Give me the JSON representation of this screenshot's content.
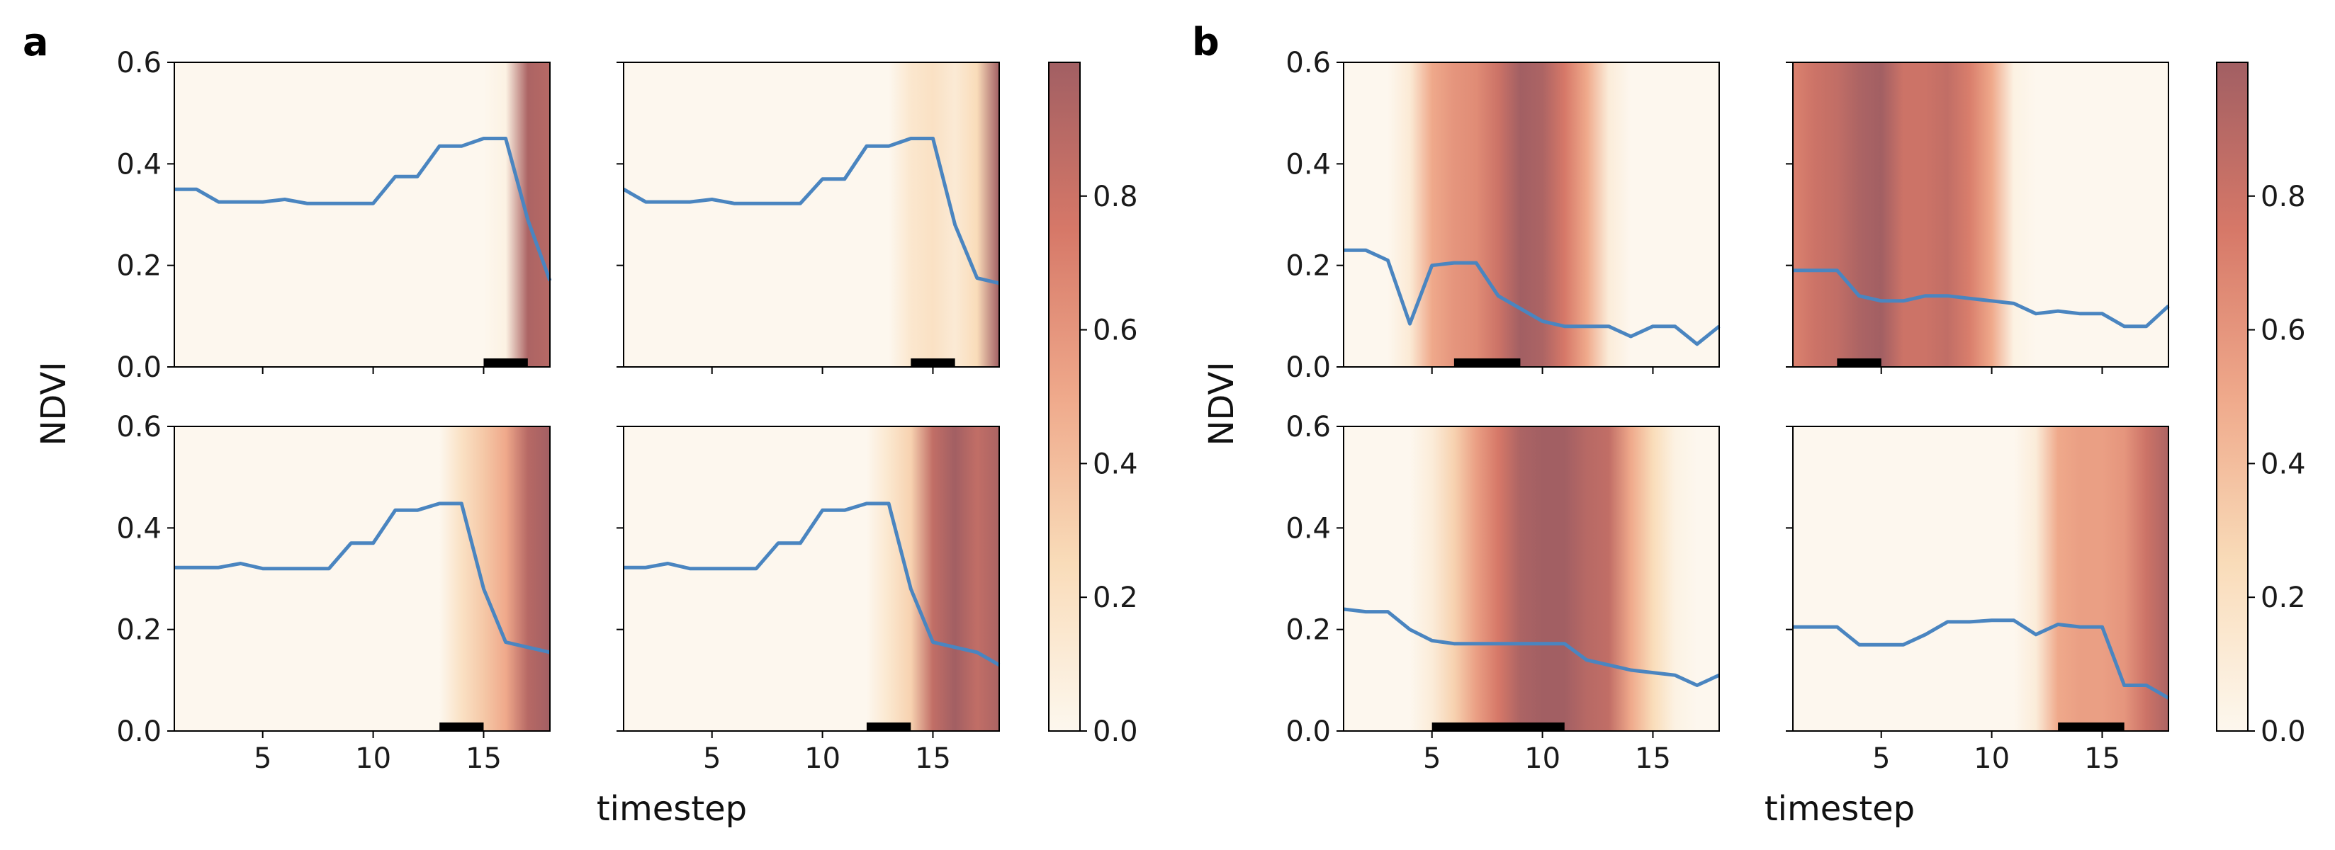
{
  "panels": [
    {
      "label": "a",
      "ylabel": "NDVI",
      "xlabel": "timestep"
    },
    {
      "label": "b",
      "ylabel": "NDVI",
      "xlabel": "timestep"
    }
  ],
  "colorbar": {
    "ticks": [
      0.0,
      0.2,
      0.4,
      0.6,
      0.8
    ],
    "tick_labels": [
      "0.0",
      "0.2",
      "0.4",
      "0.6",
      "0.8"
    ],
    "range": [
      0,
      1
    ],
    "colors": [
      "#fdf7ee",
      "#f9dcb9",
      "#efa98b",
      "#d67868",
      "#a25f63"
    ]
  },
  "line_color": "#4a85c0",
  "marker_color": "#000000",
  "chart_data": [
    {
      "type": "line",
      "panel": "a",
      "subplot": "top-left",
      "xlim": [
        1,
        18
      ],
      "ylim": [
        0,
        0.6
      ],
      "x": [
        1,
        2,
        3,
        4,
        5,
        6,
        7,
        8,
        9,
        10,
        11,
        12,
        13,
        14,
        15,
        16,
        17,
        18
      ],
      "y": [
        0.35,
        0.35,
        0.325,
        0.325,
        0.325,
        0.33,
        0.322,
        0.322,
        0.322,
        0.322,
        0.375,
        0.375,
        0.435,
        0.435,
        0.45,
        0.45,
        0.29,
        0.17
      ],
      "heat": [
        0,
        0,
        0,
        0,
        0,
        0,
        0,
        0,
        0,
        0,
        0,
        0,
        0,
        0,
        0,
        0.05,
        0.95,
        0.9
      ],
      "marker": [
        15,
        17
      ]
    },
    {
      "type": "line",
      "panel": "a",
      "subplot": "top-right",
      "xlim": [
        1,
        18
      ],
      "ylim": [
        0,
        0.6
      ],
      "x": [
        1,
        2,
        3,
        4,
        5,
        6,
        7,
        8,
        9,
        10,
        11,
        12,
        13,
        14,
        15,
        16,
        17,
        18
      ],
      "y": [
        0.35,
        0.325,
        0.325,
        0.325,
        0.33,
        0.322,
        0.322,
        0.322,
        0.322,
        0.37,
        0.37,
        0.435,
        0.435,
        0.45,
        0.45,
        0.28,
        0.175,
        0.165
      ],
      "heat": [
        0,
        0,
        0,
        0,
        0,
        0,
        0,
        0,
        0,
        0,
        0,
        0,
        0,
        0.15,
        0.2,
        0.12,
        0.25,
        1.0
      ],
      "marker": [
        14,
        16
      ]
    },
    {
      "type": "line",
      "panel": "a",
      "subplot": "bottom-left",
      "xlim": [
        1,
        18
      ],
      "ylim": [
        0,
        0.6
      ],
      "x": [
        1,
        2,
        3,
        4,
        5,
        6,
        7,
        8,
        9,
        10,
        11,
        12,
        13,
        14,
        15,
        16,
        17,
        18
      ],
      "y": [
        0.322,
        0.322,
        0.322,
        0.33,
        0.32,
        0.32,
        0.32,
        0.32,
        0.37,
        0.37,
        0.435,
        0.435,
        0.448,
        0.448,
        0.28,
        0.175,
        0.165,
        0.155
      ],
      "heat": [
        0,
        0,
        0,
        0,
        0,
        0,
        0,
        0,
        0,
        0,
        0,
        0,
        0,
        0.2,
        0.35,
        0.5,
        0.9,
        1.0
      ],
      "marker": [
        13,
        15
      ]
    },
    {
      "type": "line",
      "panel": "a",
      "subplot": "bottom-right",
      "xlim": [
        1,
        18
      ],
      "ylim": [
        0,
        0.6
      ],
      "x": [
        1,
        2,
        3,
        4,
        5,
        6,
        7,
        8,
        9,
        10,
        11,
        12,
        13,
        14,
        15,
        16,
        17,
        18
      ],
      "y": [
        0.322,
        0.322,
        0.33,
        0.32,
        0.32,
        0.32,
        0.32,
        0.37,
        0.37,
        0.435,
        0.435,
        0.448,
        0.448,
        0.28,
        0.175,
        0.165,
        0.155,
        0.13
      ],
      "heat": [
        0,
        0,
        0,
        0,
        0,
        0,
        0,
        0,
        0,
        0,
        0,
        0,
        0.15,
        0.3,
        0.85,
        1.0,
        0.85,
        0.95
      ],
      "marker": [
        12,
        14
      ]
    },
    {
      "type": "line",
      "panel": "b",
      "subplot": "top-left",
      "xlim": [
        1,
        18
      ],
      "ylim": [
        0,
        0.6
      ],
      "x": [
        1,
        2,
        3,
        4,
        5,
        6,
        7,
        8,
        9,
        10,
        11,
        12,
        13,
        14,
        15,
        16,
        17,
        18
      ],
      "y": [
        0.23,
        0.23,
        0.21,
        0.085,
        0.2,
        0.205,
        0.205,
        0.14,
        0.115,
        0.09,
        0.08,
        0.08,
        0.08,
        0.06,
        0.08,
        0.08,
        0.045,
        0.08
      ],
      "heat": [
        0,
        0,
        0,
        0.12,
        0.5,
        0.6,
        0.65,
        0.8,
        1.0,
        0.95,
        0.75,
        0.5,
        0.1,
        0,
        0,
        0,
        0,
        0
      ],
      "marker": [
        6,
        9
      ]
    },
    {
      "type": "line",
      "panel": "b",
      "subplot": "top-right",
      "xlim": [
        1,
        18
      ],
      "ylim": [
        0,
        0.6
      ],
      "x": [
        1,
        2,
        3,
        4,
        5,
        6,
        7,
        8,
        9,
        10,
        11,
        12,
        13,
        14,
        15,
        16,
        17,
        18
      ],
      "y": [
        0.19,
        0.19,
        0.19,
        0.14,
        0.13,
        0.13,
        0.14,
        0.14,
        0.135,
        0.13,
        0.125,
        0.105,
        0.11,
        0.105,
        0.105,
        0.08,
        0.08,
        0.12
      ],
      "heat": [
        0.7,
        0.8,
        0.85,
        0.95,
        1.0,
        0.8,
        0.8,
        0.85,
        0.72,
        0.5,
        0.05,
        0,
        0,
        0,
        0,
        0,
        0,
        0
      ],
      "marker": [
        3,
        5
      ]
    },
    {
      "type": "line",
      "panel": "b",
      "subplot": "bottom-left",
      "xlim": [
        1,
        18
      ],
      "ylim": [
        0,
        0.6
      ],
      "x": [
        1,
        2,
        3,
        4,
        5,
        6,
        7,
        8,
        9,
        10,
        11,
        12,
        13,
        14,
        15,
        16,
        17,
        18
      ],
      "y": [
        0.24,
        0.235,
        0.235,
        0.2,
        0.178,
        0.172,
        0.172,
        0.172,
        0.172,
        0.172,
        0.172,
        0.14,
        0.13,
        0.12,
        0.115,
        0.11,
        0.09,
        0.11
      ],
      "heat": [
        0,
        0,
        0,
        0,
        0.1,
        0.3,
        0.55,
        0.75,
        0.95,
        1.0,
        1.0,
        0.9,
        0.85,
        0.5,
        0.25,
        0.05,
        0,
        0
      ],
      "marker": [
        5,
        11
      ]
    },
    {
      "type": "line",
      "panel": "b",
      "subplot": "bottom-right",
      "xlim": [
        1,
        18
      ],
      "ylim": [
        0,
        0.6
      ],
      "x": [
        1,
        2,
        3,
        4,
        5,
        6,
        7,
        8,
        9,
        10,
        11,
        12,
        13,
        14,
        15,
        16,
        17,
        18
      ],
      "y": [
        0.205,
        0.205,
        0.205,
        0.17,
        0.17,
        0.17,
        0.19,
        0.215,
        0.215,
        0.218,
        0.218,
        0.19,
        0.21,
        0.205,
        0.205,
        0.09,
        0.09,
        0.065
      ],
      "heat": [
        0,
        0,
        0,
        0,
        0,
        0,
        0,
        0,
        0,
        0,
        0,
        0.1,
        0.5,
        0.55,
        0.55,
        0.6,
        0.8,
        0.95
      ],
      "marker": [
        13,
        16
      ]
    }
  ]
}
